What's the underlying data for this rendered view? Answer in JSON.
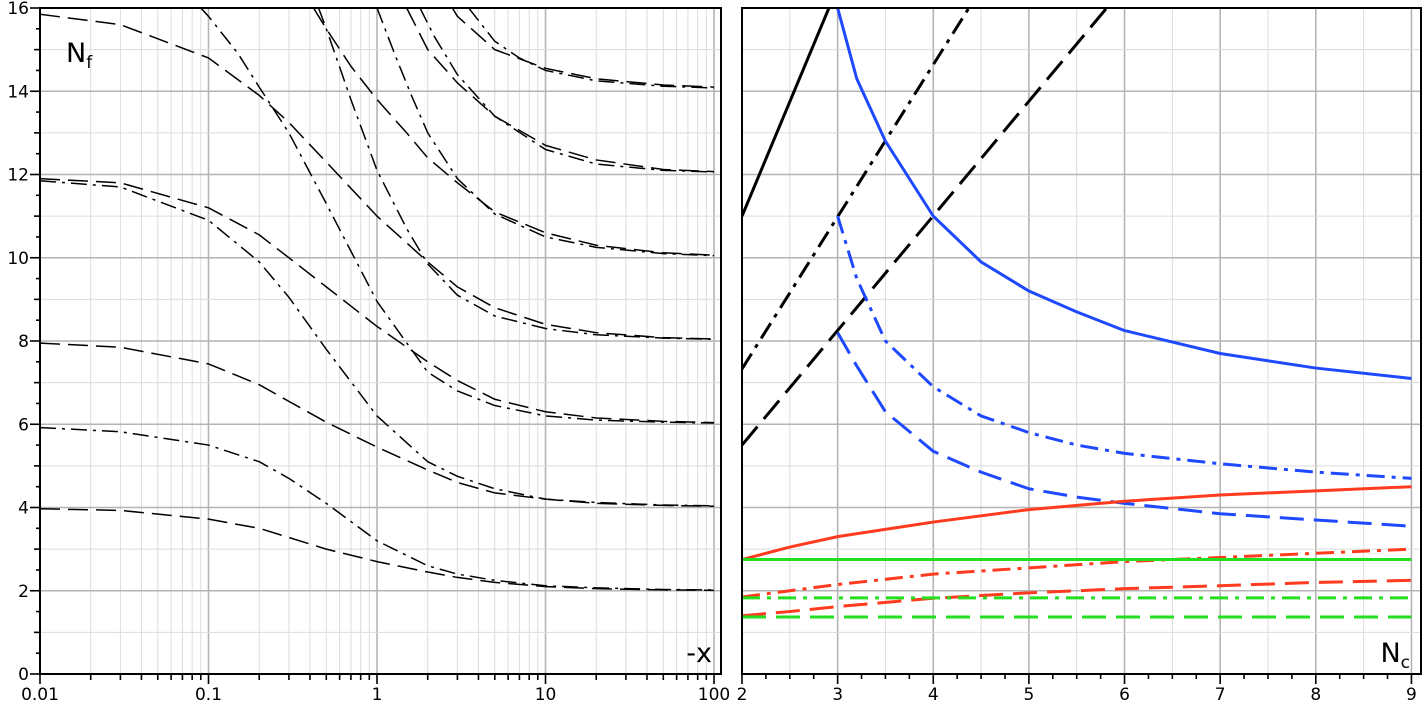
{
  "chart_data": [
    {
      "type": "line",
      "title": "",
      "xlabel": "-x",
      "ylabel": "N",
      "ylabel_subscript": "f",
      "x_scale": "log",
      "xlim": [
        0.01,
        110
      ],
      "ylim": [
        0,
        16
      ],
      "grid": true,
      "x_tick_labels": [
        "0.01",
        "0.1",
        "1",
        "10",
        "100"
      ],
      "y_tick_labels": [
        "0",
        "2",
        "4",
        "6",
        "8",
        "10",
        "12",
        "14",
        "16"
      ],
      "series": [
        {
          "style": "dashdot",
          "color": "#000000",
          "x": [
            0.01,
            0.03,
            0.1,
            0.2,
            0.3,
            0.5,
            1,
            2,
            3,
            5,
            10,
            20,
            50,
            100
          ],
          "y": [
            5.92,
            5.82,
            5.5,
            5.1,
            4.7,
            4.1,
            3.2,
            2.6,
            2.4,
            2.25,
            2.12,
            2.07,
            2.03,
            2.02
          ]
        },
        {
          "style": "dashdot",
          "color": "#000000",
          "x": [
            0.01,
            0.03,
            0.1,
            0.2,
            0.3,
            0.5,
            1,
            2,
            3,
            5,
            10,
            20,
            50,
            100
          ],
          "y": [
            11.85,
            11.7,
            10.9,
            9.9,
            9.05,
            7.8,
            6.2,
            5.1,
            4.75,
            4.45,
            4.2,
            4.12,
            4.06,
            4.04
          ]
        },
        {
          "style": "dashdot",
          "color": "#000000",
          "x": [
            0.09,
            0.1,
            0.15,
            0.2,
            0.3,
            0.5,
            1,
            2,
            3,
            5,
            10,
            20,
            50,
            100
          ],
          "y": [
            16.0,
            15.8,
            14.9,
            14.1,
            13.0,
            11.3,
            8.95,
            7.25,
            6.8,
            6.45,
            6.2,
            6.1,
            6.05,
            6.03
          ]
        },
        {
          "style": "dashdot",
          "color": "#000000",
          "x": [
            0.45,
            0.5,
            0.7,
            1,
            1.5,
            2,
            3,
            5,
            10,
            20,
            50,
            100
          ],
          "y": [
            16.0,
            15.5,
            13.8,
            12.1,
            10.7,
            9.85,
            9.1,
            8.6,
            8.3,
            8.15,
            8.07,
            8.04
          ]
        },
        {
          "style": "dashdot",
          "color": "#000000",
          "x": [
            1.0,
            1.3,
            1.6,
            2,
            3,
            5,
            10,
            20,
            50,
            100
          ],
          "y": [
            16.0,
            14.8,
            13.9,
            13.0,
            11.9,
            11.05,
            10.5,
            10.25,
            10.1,
            10.05
          ]
        },
        {
          "style": "dashdot",
          "color": "#000000",
          "x": [
            1.8,
            2.2,
            3,
            5,
            10,
            20,
            50,
            100
          ],
          "y": [
            16.0,
            15.3,
            14.4,
            13.4,
            12.6,
            12.25,
            12.1,
            12.06
          ]
        },
        {
          "style": "dashdot",
          "color": "#000000",
          "x": [
            3.5,
            5,
            7,
            10,
            20,
            50,
            100
          ],
          "y": [
            16.0,
            15.2,
            14.8,
            14.5,
            14.25,
            14.12,
            14.08
          ]
        },
        {
          "style": "dash",
          "color": "#000000",
          "x": [
            0.01,
            0.03,
            0.1,
            0.2,
            0.3,
            0.5,
            1,
            2,
            3,
            5,
            10,
            20,
            50,
            100
          ],
          "y": [
            3.97,
            3.93,
            3.72,
            3.5,
            3.28,
            3.0,
            2.7,
            2.45,
            2.32,
            2.2,
            2.1,
            2.05,
            2.02,
            2.01
          ]
        },
        {
          "style": "dash",
          "color": "#000000",
          "x": [
            0.01,
            0.03,
            0.1,
            0.2,
            0.3,
            0.5,
            1,
            2,
            3,
            5,
            10,
            20,
            50,
            100
          ],
          "y": [
            7.95,
            7.85,
            7.45,
            6.95,
            6.55,
            6.05,
            5.45,
            4.9,
            4.6,
            4.35,
            4.2,
            4.1,
            4.05,
            4.03
          ]
        },
        {
          "style": "dash",
          "color": "#000000",
          "x": [
            0.01,
            0.03,
            0.1,
            0.2,
            0.3,
            0.5,
            1,
            2,
            3,
            5,
            10,
            20,
            50,
            100
          ],
          "y": [
            11.9,
            11.8,
            11.2,
            10.55,
            10.0,
            9.3,
            8.35,
            7.5,
            7.05,
            6.6,
            6.3,
            6.15,
            6.07,
            6.04
          ]
        },
        {
          "style": "dash",
          "color": "#000000",
          "x": [
            0.01,
            0.03,
            0.1,
            0.2,
            0.3,
            0.5,
            1,
            2,
            3,
            5,
            10,
            20,
            50,
            100
          ],
          "y": [
            15.85,
            15.6,
            14.8,
            13.9,
            13.25,
            12.3,
            11.0,
            9.9,
            9.3,
            8.8,
            8.4,
            8.2,
            8.08,
            8.05
          ]
        },
        {
          "style": "dash",
          "color": "#000000",
          "x": [
            0.42,
            0.5,
            0.7,
            1,
            1.5,
            2,
            3,
            5,
            10,
            20,
            50,
            100
          ],
          "y": [
            16.0,
            15.5,
            14.6,
            13.8,
            13.0,
            12.4,
            11.8,
            11.1,
            10.6,
            10.3,
            10.12,
            10.06
          ]
        },
        {
          "style": "dash",
          "color": "#000000",
          "x": [
            1.5,
            2,
            3,
            5,
            10,
            20,
            50,
            100
          ],
          "y": [
            16.0,
            15.0,
            14.2,
            13.4,
            12.7,
            12.35,
            12.12,
            12.07
          ]
        },
        {
          "style": "dash",
          "color": "#000000",
          "x": [
            2.8,
            3,
            5,
            10,
            20,
            50,
            100
          ],
          "y": [
            16.0,
            15.8,
            15.0,
            14.55,
            14.3,
            14.15,
            14.1
          ]
        }
      ]
    },
    {
      "type": "line",
      "title": "",
      "xlabel": "N",
      "xlabel_subscript": "c",
      "ylabel": "",
      "xlim": [
        2,
        9.1
      ],
      "ylim": [
        0,
        16
      ],
      "grid": true,
      "x_tick_labels": [
        "2",
        "3",
        "4",
        "5",
        "6",
        "7",
        "8",
        "9"
      ],
      "series": [
        {
          "style": "solid",
          "color": "#000000",
          "x": [
            2,
            3
          ],
          "y": [
            11,
            16.5
          ]
        },
        {
          "style": "dashdot",
          "color": "#000000",
          "x": [
            2,
            4.4
          ],
          "y": [
            7.33,
            16.1
          ]
        },
        {
          "style": "dash",
          "color": "#000000",
          "x": [
            2,
            5.85
          ],
          "y": [
            5.5,
            16.1
          ]
        },
        {
          "style": "solid",
          "color": "#1f49ff",
          "x": [
            3.0,
            3.2,
            3.5,
            4,
            4.5,
            5,
            5.5,
            6,
            7,
            8,
            9
          ],
          "y": [
            16.0,
            14.3,
            12.8,
            11.0,
            9.9,
            9.2,
            8.7,
            8.25,
            7.7,
            7.35,
            7.1
          ]
        },
        {
          "style": "dashdot",
          "color": "#1f49ff",
          "x": [
            3.0,
            3.2,
            3.5,
            4,
            4.5,
            5,
            5.5,
            6,
            7,
            8,
            9
          ],
          "y": [
            11.0,
            9.5,
            8.0,
            6.9,
            6.2,
            5.8,
            5.5,
            5.3,
            5.05,
            4.85,
            4.7
          ]
        },
        {
          "style": "dash",
          "color": "#1f49ff",
          "x": [
            3.0,
            3.2,
            3.5,
            4,
            4.5,
            5,
            5.5,
            6,
            7,
            8,
            9
          ],
          "y": [
            8.2,
            7.4,
            6.3,
            5.35,
            4.85,
            4.45,
            4.25,
            4.1,
            3.85,
            3.7,
            3.55
          ]
        },
        {
          "style": "solid",
          "color": "#ff3b1f",
          "x": [
            2,
            2.5,
            3,
            4,
            5,
            6,
            7,
            8,
            9
          ],
          "y": [
            2.75,
            3.05,
            3.3,
            3.65,
            3.95,
            4.15,
            4.3,
            4.4,
            4.5
          ]
        },
        {
          "style": "dashdot",
          "color": "#ff3b1f",
          "x": [
            2,
            2.5,
            3,
            4,
            5,
            6,
            7,
            8,
            9
          ],
          "y": [
            1.85,
            2.0,
            2.15,
            2.4,
            2.55,
            2.7,
            2.8,
            2.9,
            3.0
          ]
        },
        {
          "style": "dash",
          "color": "#ff3b1f",
          "x": [
            2,
            2.5,
            3,
            4,
            5,
            6,
            7,
            8,
            9
          ],
          "y": [
            1.4,
            1.5,
            1.62,
            1.82,
            1.95,
            2.05,
            2.12,
            2.2,
            2.25
          ]
        },
        {
          "style": "solid",
          "color": "#22e01e",
          "x": [
            2,
            9
          ],
          "y": [
            2.75,
            2.75
          ]
        },
        {
          "style": "dashdot",
          "color": "#22e01e",
          "x": [
            2,
            9
          ],
          "y": [
            1.83,
            1.83
          ]
        },
        {
          "style": "dash",
          "color": "#22e01e",
          "x": [
            2,
            9
          ],
          "y": [
            1.37,
            1.37
          ]
        }
      ]
    }
  ]
}
